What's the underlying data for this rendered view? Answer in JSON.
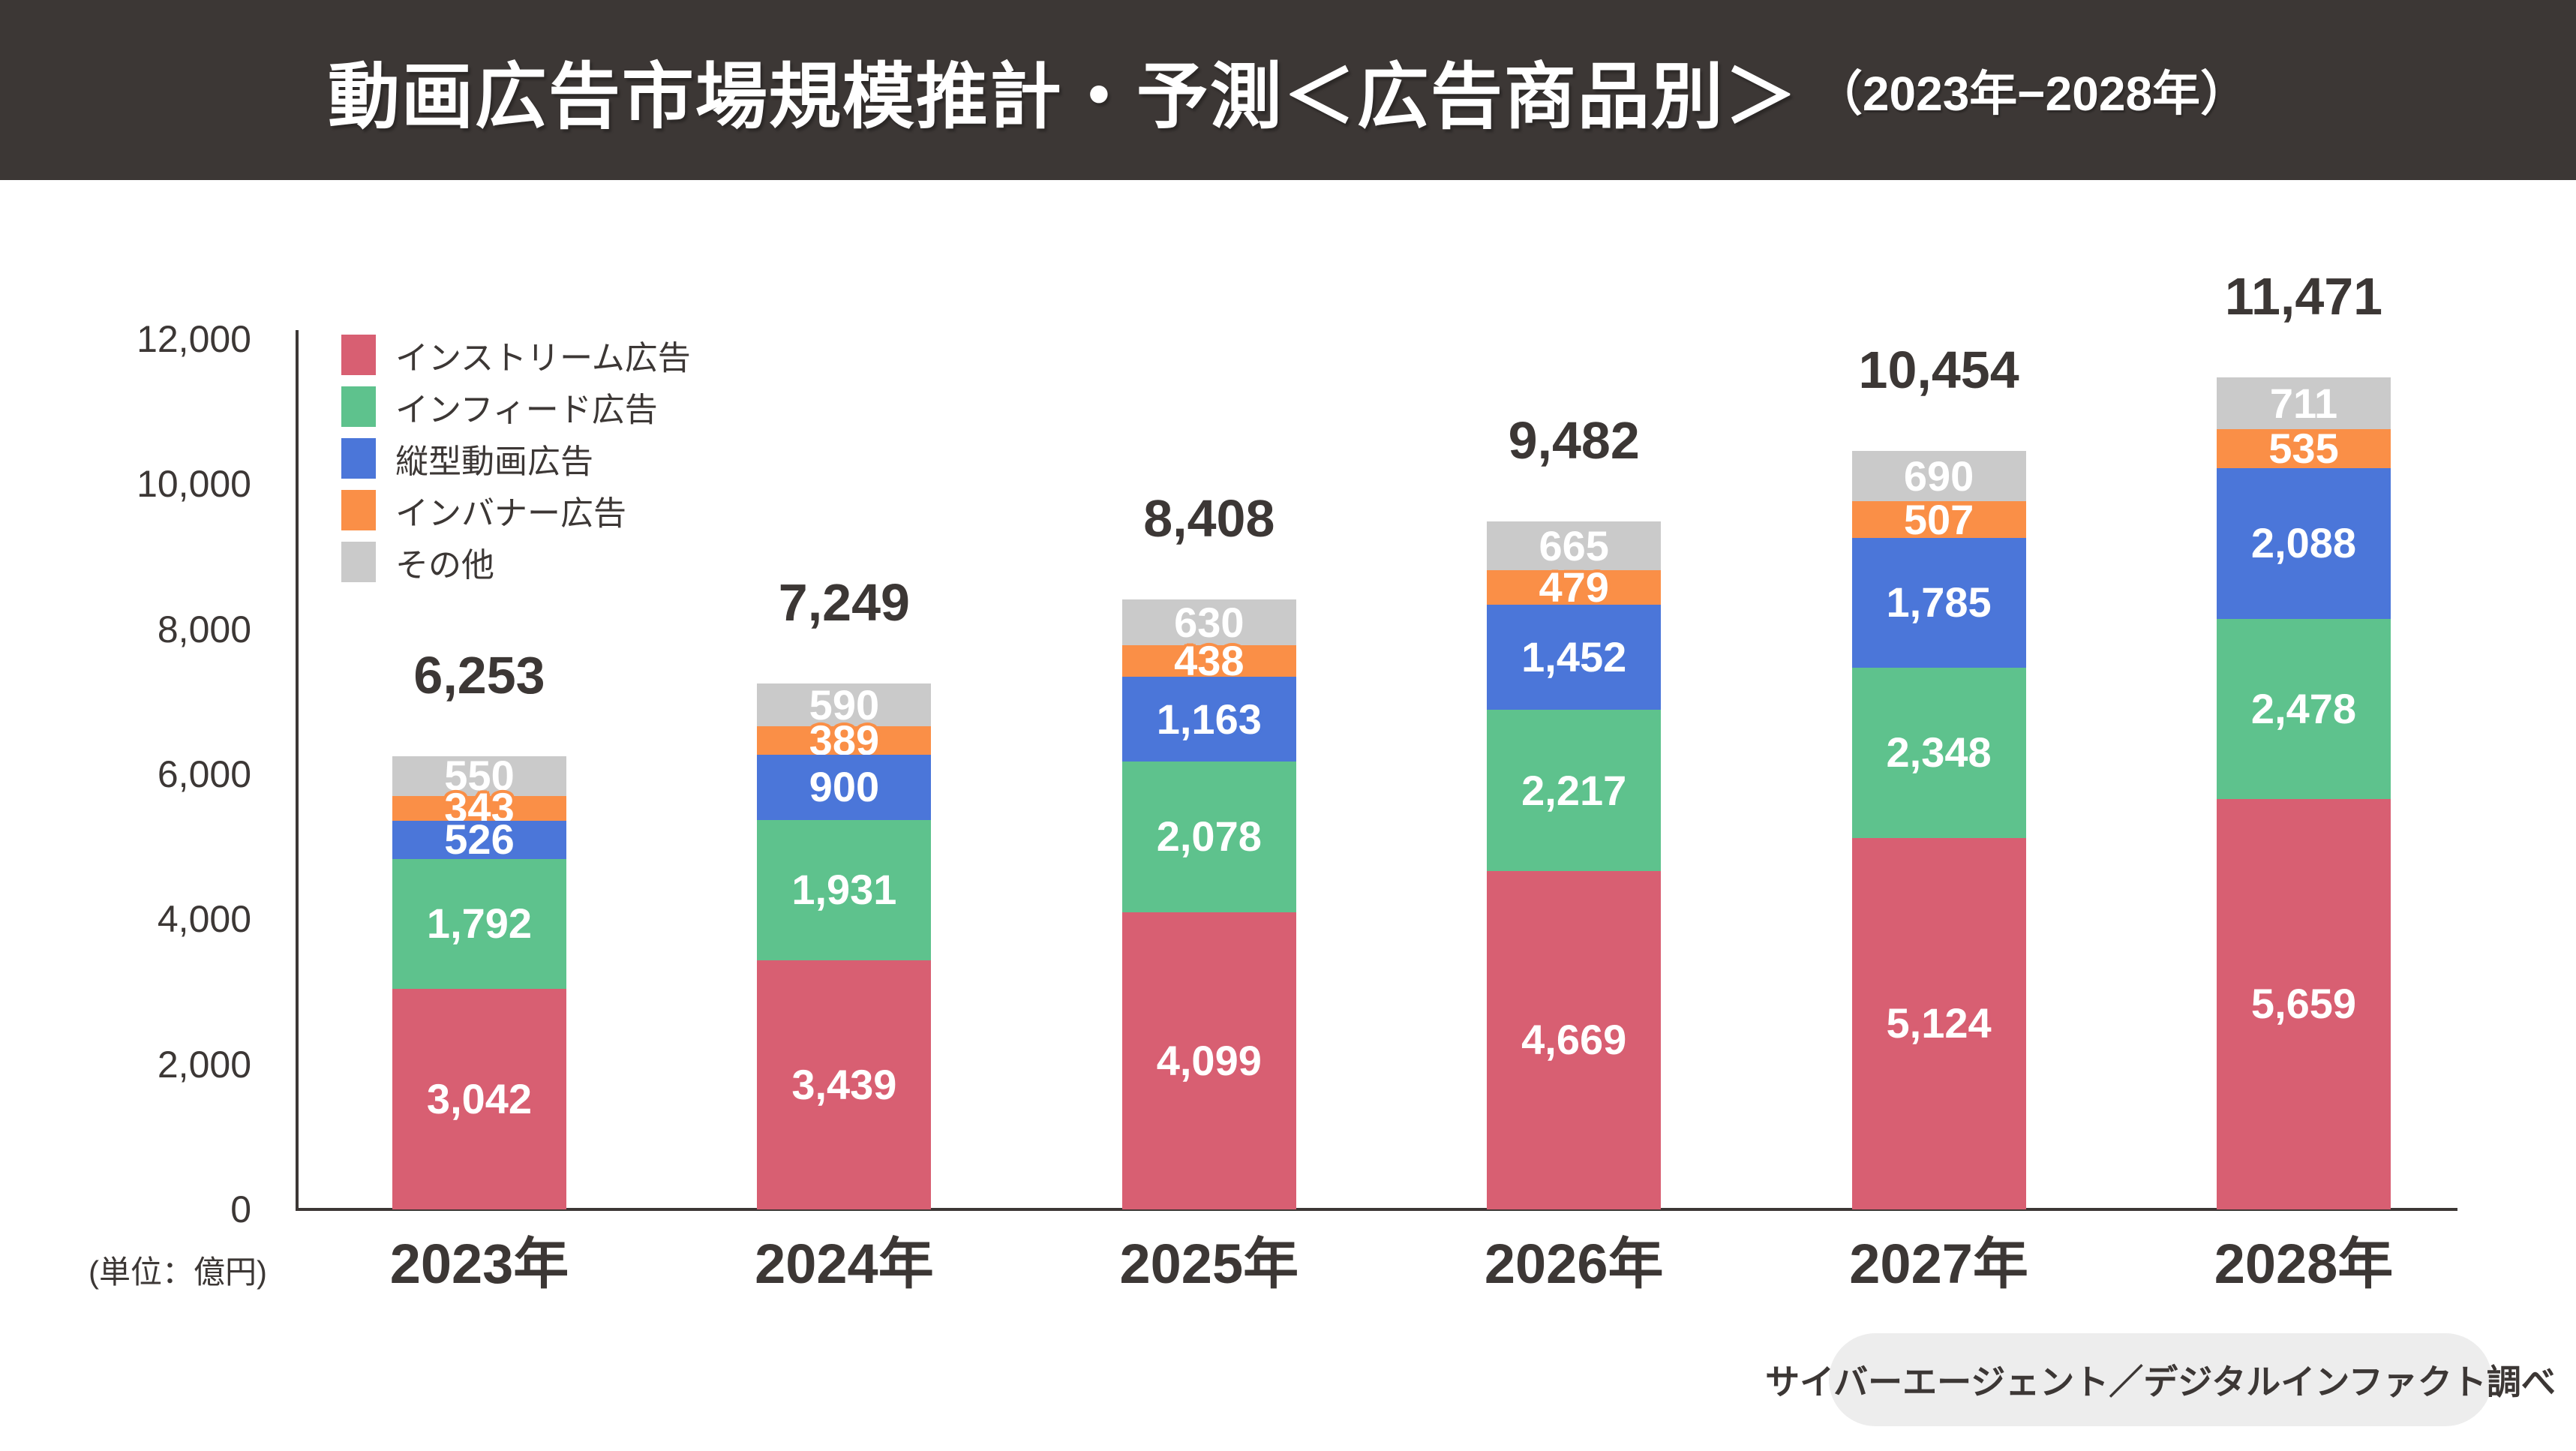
{
  "header": {
    "title_main": "動画広告市場規模推計・予測＜広告商品別＞",
    "title_period": "（2023年−2028年）"
  },
  "chart_data": {
    "type": "bar",
    "stacked": true,
    "title": "動画広告市場規模推計・予測＜広告商品別＞（2023年−2028年）",
    "unit_label": "(単位：億円)",
    "categories": [
      "2023年",
      "2024年",
      "2025年",
      "2026年",
      "2027年",
      "2028年"
    ],
    "totals": [
      6253,
      7249,
      8408,
      9482,
      10454,
      11471
    ],
    "series": [
      {
        "key": "instream",
        "label": "インストリーム広告",
        "color": "#d85f72",
        "values": [
          3042,
          3439,
          4099,
          4669,
          5124,
          5659
        ]
      },
      {
        "key": "infeed",
        "label": "インフィード広告",
        "color": "#5ec28d",
        "values": [
          1792,
          1931,
          2078,
          2217,
          2348,
          2478
        ]
      },
      {
        "key": "vertical",
        "label": "縦型動画広告",
        "color": "#4b76d9",
        "values": [
          526,
          900,
          1163,
          1452,
          1785,
          2088
        ]
      },
      {
        "key": "inbanner",
        "label": "インバナー広告",
        "color": "#fa8f47",
        "values": [
          343,
          389,
          438,
          479,
          507,
          535
        ]
      },
      {
        "key": "other",
        "label": "その他",
        "color": "#cacaca",
        "values": [
          550,
          590,
          630,
          665,
          690,
          711
        ]
      }
    ],
    "y_axis": {
      "tick_values": [
        12000,
        10000,
        8000,
        6000,
        4000,
        2000,
        0
      ],
      "ylim": [
        0,
        12000
      ],
      "grid": false
    },
    "legend_position": "top-left"
  },
  "footer": {
    "source": "サイバーエージェント／デジタルインファクト調べ"
  },
  "colors": {
    "header_bg": "#3c3735",
    "text_dark": "#3c3735",
    "pill_bg": "#ededed"
  }
}
